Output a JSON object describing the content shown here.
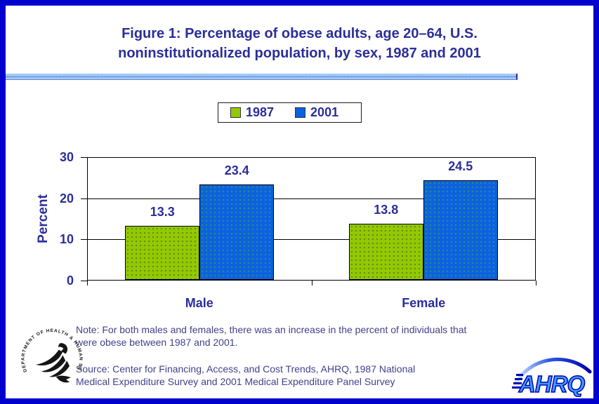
{
  "header": {
    "title_line1": "Figure 1: Percentage of obese adults, age 20–64, U.S.",
    "title_line2": "noninstitutionalized population, by sex, 1987 and 2001"
  },
  "chart_data": {
    "type": "bar",
    "title": "Figure 1: Percentage of obese adults, age 20–64, U.S. noninstitutionalized population, by sex, 1987 and 2001",
    "categories": [
      "Male",
      "Female"
    ],
    "series": [
      {
        "name": "1987",
        "values": [
          13.3,
          13.8
        ],
        "color": "#93C900",
        "dot_color": "#5E8F1A"
      },
      {
        "name": "2001",
        "values": [
          23.4,
          24.5
        ],
        "color": "#0B62DF",
        "dot_color": "#2E8A8A"
      }
    ],
    "ylabel": "Percent",
    "xlabel": "",
    "ylim": [
      0,
      30
    ],
    "yticks": [
      0,
      10,
      20,
      30
    ],
    "grid": true,
    "legend_position": "top",
    "bar_value_labels": [
      [
        "13.3",
        "23.4"
      ],
      [
        "13.8",
        "24.5"
      ]
    ]
  },
  "footer": {
    "note_lines": [
      "Note: For both males and females, there was an increase in the percent of individuals that",
      "were obese between 1987 and 2001."
    ],
    "source_lines": [
      "Source: Center for Financing, Access, and Cost Trends, AHRQ, 1987 National",
      "Medical Expenditure Survey and 2001 Medical Expenditure Panel Survey"
    ]
  },
  "logos": {
    "hhs_seal_text": "DEPARTMENT OF HEALTH & HUMAN SERVICES · USA ·",
    "ahrq_text": "AHRQ"
  },
  "colors": {
    "page_border": "#0101CE",
    "title_text": "#2B2E9A",
    "body_text": "#41418C",
    "rule_fill": "#9CC9F8",
    "axis_line": "#000000",
    "bar_outline": "#000000"
  }
}
